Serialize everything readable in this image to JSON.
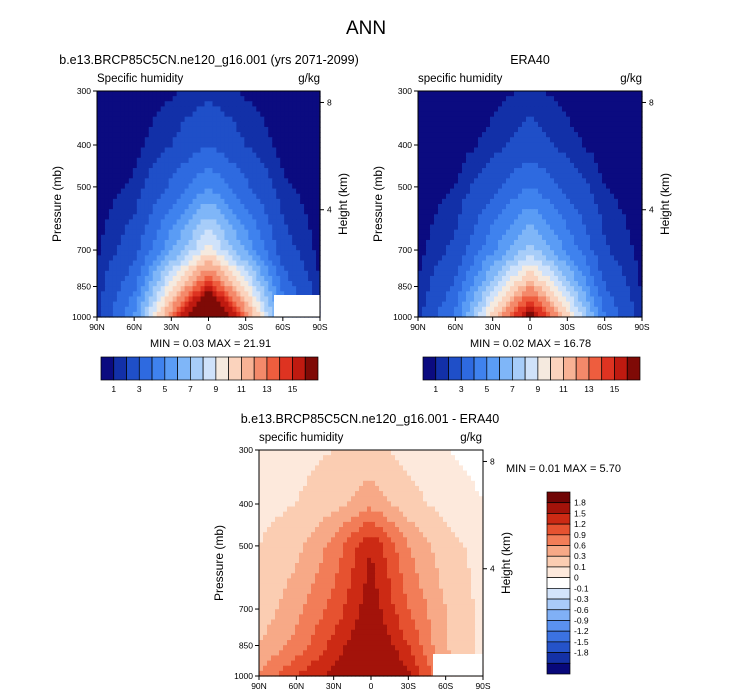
{
  "figure_title": "ANN",
  "colors": {
    "abs_scale": [
      "#0b0b80",
      "#1230a8",
      "#1f4fc8",
      "#2e6ae0",
      "#3f82ee",
      "#5a9cf5",
      "#7fb6f8",
      "#a7cdf9",
      "#cfe2fa",
      "#f5eadf",
      "#fbd3bd",
      "#f8b295",
      "#f4896a",
      "#ee5d3e",
      "#de3321",
      "#bf1a10",
      "#7f0a06"
    ],
    "diff_scale": [
      "#08087a",
      "#1431a6",
      "#2553c9",
      "#3b72e2",
      "#5a91f0",
      "#80b0f6",
      "#a9cbf9",
      "#d3e4fb",
      "#ffffff",
      "#fde9dc",
      "#fbcdb2",
      "#f7a987",
      "#f27d58",
      "#e65230",
      "#cc2a14",
      "#a3130a",
      "#700505"
    ]
  },
  "panels": {
    "model": {
      "title": "b.e13.BRCP85C5CN.ne120_g16.001 (yrs 2071-2099)",
      "left_label": "Specific humidity",
      "right_label": "g/kg",
      "min_max": "MIN =   0.03  MAX =  21.91"
    },
    "obs": {
      "title": "ERA40",
      "left_label": "specific humidity",
      "right_label": "g/kg",
      "min_max": "MIN =   0.02  MAX =  16.78"
    },
    "diff": {
      "title": "b.e13.BRCP85C5CN.ne120_g16.001 - ERA40",
      "left_label": "specific humidity",
      "right_label": "g/kg",
      "min_max": "MIN =  0.01  MAX =   5.70"
    }
  },
  "axes": {
    "ylabel": "Pressure (mb)",
    "ylabel_right": "Height (km)",
    "pressure_ticks": [
      "300",
      "400",
      "500",
      "700",
      "850",
      "1000"
    ],
    "height_ticks": [
      "8",
      "4"
    ],
    "lat_ticks": [
      "90N",
      "60N",
      "30N",
      "0",
      "30S",
      "60S",
      "90S"
    ]
  },
  "colorbars": {
    "abs_labels": [
      "1",
      "3",
      "5",
      "7",
      "9",
      "11",
      "13",
      "15"
    ],
    "diff_labels": [
      "1.8",
      "1.5",
      "1.2",
      "0.9",
      "0.6",
      "0.3",
      "0.1",
      "0",
      "-0.1",
      "-0.3",
      "-0.6",
      "-0.9",
      "-1.2",
      "-1.5",
      "-1.8"
    ]
  },
  "chart_data": [
    {
      "type": "heatmap",
      "title": "b.e13.BRCP85C5CN.ne120_g16.001 (yrs 2071-2099)",
      "subtitle": "Specific humidity",
      "units": "g/kg",
      "xlabel": "",
      "ylabel": "Pressure (mb)",
      "ylabel_right": "Height (km)",
      "x": [
        90,
        60,
        30,
        0,
        -30,
        -60,
        -90
      ],
      "y": [
        300,
        400,
        500,
        700,
        850,
        1000
      ],
      "ylim": [
        1000,
        300
      ],
      "values": [
        [
          0.1,
          0.2,
          0.4,
          0.8,
          0.4,
          0.2,
          0.1
        ],
        [
          0.1,
          0.3,
          1.0,
          2.0,
          1.0,
          0.3,
          0.1
        ],
        [
          0.2,
          0.6,
          2.2,
          4.0,
          2.2,
          0.6,
          0.2
        ],
        [
          0.4,
          1.5,
          4.8,
          8.5,
          4.8,
          1.4,
          0.3
        ],
        [
          0.6,
          2.8,
          8.5,
          14.0,
          8.5,
          2.6,
          0.5
        ],
        [
          0.8,
          4.0,
          12.0,
          20.0,
          12.0,
          4.0,
          0.7
        ]
      ],
      "grid": false
    },
    {
      "type": "heatmap",
      "title": "ERA40",
      "subtitle": "specific humidity",
      "units": "g/kg",
      "xlabel": "",
      "ylabel": "Pressure (mb)",
      "ylabel_right": "Height (km)",
      "x": [
        90,
        60,
        30,
        0,
        -30,
        -60,
        -90
      ],
      "y": [
        300,
        400,
        500,
        700,
        850,
        1000
      ],
      "ylim": [
        1000,
        300
      ],
      "values": [
        [
          0.05,
          0.1,
          0.3,
          0.6,
          0.3,
          0.1,
          0.05
        ],
        [
          0.1,
          0.2,
          0.7,
          1.5,
          0.7,
          0.2,
          0.1
        ],
        [
          0.2,
          0.5,
          1.7,
          3.0,
          1.7,
          0.5,
          0.2
        ],
        [
          0.3,
          1.2,
          3.8,
          6.5,
          3.8,
          1.1,
          0.3
        ],
        [
          0.5,
          2.2,
          6.5,
          11.0,
          6.5,
          2.0,
          0.4
        ],
        [
          0.7,
          3.2,
          9.5,
          16.0,
          9.5,
          3.0,
          0.6
        ]
      ],
      "grid": false
    },
    {
      "type": "heatmap",
      "title": "b.e13.BRCP85C5CN.ne120_g16.001 - ERA40",
      "subtitle": "specific humidity",
      "units": "g/kg",
      "xlabel": "",
      "ylabel": "Pressure (mb)",
      "ylabel_right": "Height (km)",
      "x": [
        90,
        60,
        30,
        0,
        -30,
        -60,
        -90
      ],
      "y": [
        300,
        400,
        500,
        700,
        850,
        1000
      ],
      "ylim": [
        1000,
        300
      ],
      "values": [
        [
          0.1,
          0.2,
          0.3,
          0.4,
          0.2,
          0.1,
          0.05
        ],
        [
          0.2,
          0.3,
          0.5,
          0.8,
          0.4,
          0.2,
          0.1
        ],
        [
          0.3,
          0.5,
          1.0,
          1.8,
          0.9,
          0.4,
          0.2
        ],
        [
          0.4,
          0.8,
          1.3,
          2.0,
          1.2,
          0.6,
          0.2
        ],
        [
          0.6,
          1.0,
          1.6,
          2.2,
          1.5,
          0.6,
          0.2
        ],
        [
          0.9,
          1.5,
          1.9,
          2.5,
          1.9,
          0.8,
          0.3
        ]
      ],
      "grid": false
    }
  ]
}
